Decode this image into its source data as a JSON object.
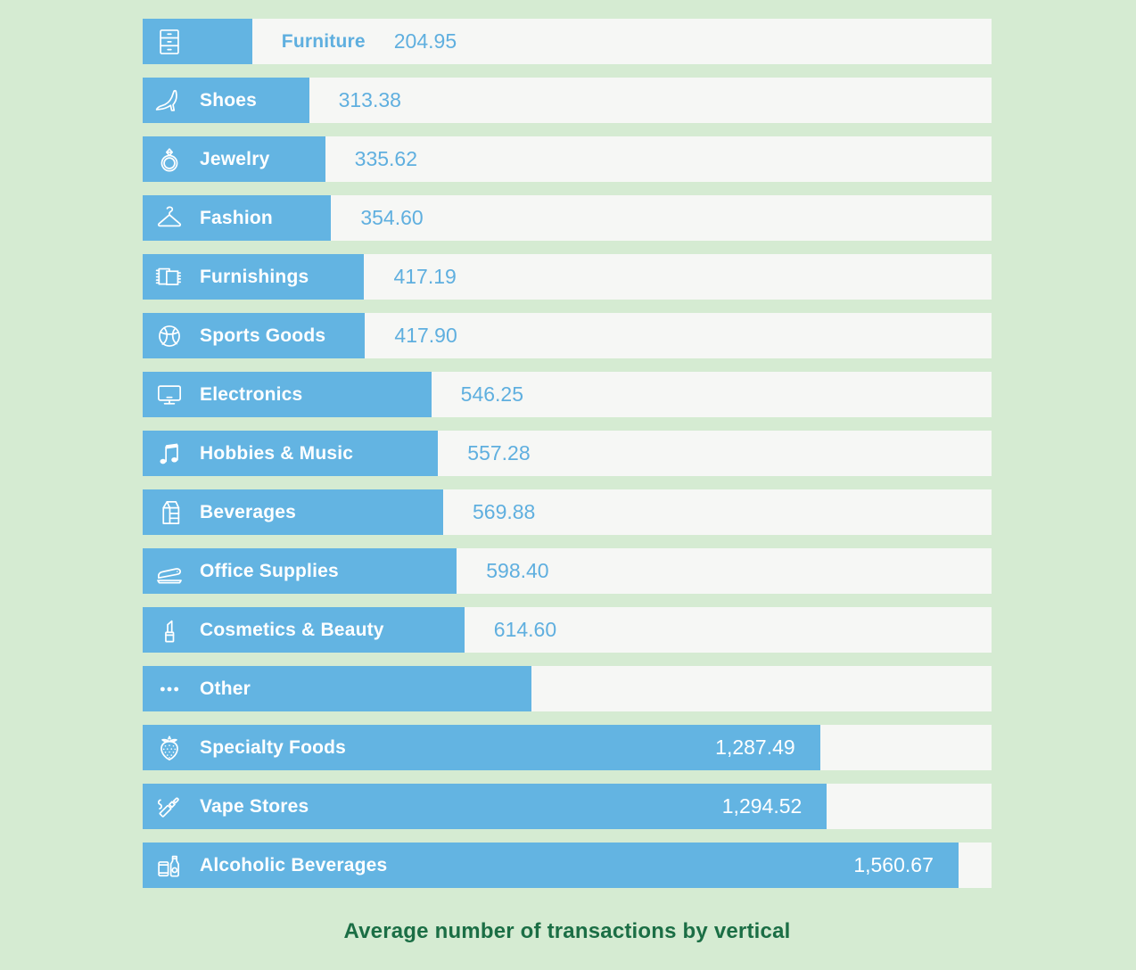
{
  "title": "Average number of transactions by vertical",
  "colors": {
    "background": "#d5ebd2",
    "bar": "#63b4e2",
    "track": "#f6f7f5",
    "bar_text": "#ffffff",
    "outside_text": "#5fafdf",
    "title_text": "#1b6e45"
  },
  "chart_data": {
    "type": "bar",
    "orientation": "horizontal",
    "title": "Average number of transactions by vertical",
    "xlabel": "",
    "ylabel": "",
    "legend": false,
    "grid": false,
    "axis_max": 1624,
    "categories": [
      "Furniture",
      "Shoes",
      "Jewelry",
      "Fashion",
      "Furnishings",
      "Sports Goods",
      "Electronics",
      "Hobbies & Music",
      "Beverages",
      "Office Supplies",
      "Cosmetics & Beauty",
      "Other",
      "Specialty Foods",
      "Vape Stores",
      "Alcoholic Beverages"
    ],
    "values": [
      204.95,
      313.38,
      335.62,
      354.6,
      417.19,
      417.9,
      546.25,
      557.28,
      569.88,
      598.4,
      614.6,
      743,
      1287.49,
      1294.52,
      1560.67
    ],
    "rows": [
      {
        "label": "Furniture",
        "value": 204.95,
        "display_value": "204.95",
        "icon": "dresser-icon",
        "bar_pct": 12.9,
        "label_inside": false,
        "value_inside": false
      },
      {
        "label": "Shoes",
        "value": 313.38,
        "display_value": "313.38",
        "icon": "high-heel-icon",
        "bar_pct": 19.6,
        "label_inside": true,
        "value_inside": false
      },
      {
        "label": "Jewelry",
        "value": 335.62,
        "display_value": "335.62",
        "icon": "ring-icon",
        "bar_pct": 21.5,
        "label_inside": true,
        "value_inside": false
      },
      {
        "label": "Fashion",
        "value": 354.6,
        "display_value": "354.60",
        "icon": "hanger-icon",
        "bar_pct": 22.2,
        "label_inside": true,
        "value_inside": false
      },
      {
        "label": "Furnishings",
        "value": 417.19,
        "display_value": "417.19",
        "icon": "rugs-icon",
        "bar_pct": 26.1,
        "label_inside": true,
        "value_inside": false
      },
      {
        "label": "Sports Goods",
        "value": 417.9,
        "display_value": "417.90",
        "icon": "basketball-icon",
        "bar_pct": 26.2,
        "label_inside": true,
        "value_inside": false
      },
      {
        "label": "Electronics",
        "value": 546.25,
        "display_value": "546.25",
        "icon": "monitor-icon",
        "bar_pct": 34.0,
        "label_inside": true,
        "value_inside": false
      },
      {
        "label": "Hobbies & Music",
        "value": 557.28,
        "display_value": "557.28",
        "icon": "music-notes-icon",
        "bar_pct": 34.8,
        "label_inside": true,
        "value_inside": false
      },
      {
        "label": "Beverages",
        "value": 569.88,
        "display_value": "569.88",
        "icon": "milk-carton-icon",
        "bar_pct": 35.4,
        "label_inside": true,
        "value_inside": false
      },
      {
        "label": "Office Supplies",
        "value": 598.4,
        "display_value": "598.40",
        "icon": "stapler-icon",
        "bar_pct": 37.0,
        "label_inside": true,
        "value_inside": false
      },
      {
        "label": "Cosmetics & Beauty",
        "value": 614.6,
        "display_value": "614.60",
        "icon": "lipstick-icon",
        "bar_pct": 37.9,
        "label_inside": true,
        "value_inside": false
      },
      {
        "label": "Other",
        "value": 743,
        "display_value": "",
        "icon": "ellipsis-icon",
        "bar_pct": 45.8,
        "label_inside": true,
        "value_inside": false,
        "value_estimated": true
      },
      {
        "label": "Specialty Foods",
        "value": 1287.49,
        "display_value": "1,287.49",
        "icon": "strawberry-icon",
        "bar_pct": 79.8,
        "label_inside": true,
        "value_inside": true
      },
      {
        "label": "Vape Stores",
        "value": 1294.52,
        "display_value": "1,294.52",
        "icon": "vape-pen-icon",
        "bar_pct": 80.6,
        "label_inside": true,
        "value_inside": true
      },
      {
        "label": "Alcoholic Beverages",
        "value": 1560.67,
        "display_value": "1,560.67",
        "icon": "bottles-icon",
        "bar_pct": 96.1,
        "label_inside": true,
        "value_inside": true
      }
    ]
  }
}
